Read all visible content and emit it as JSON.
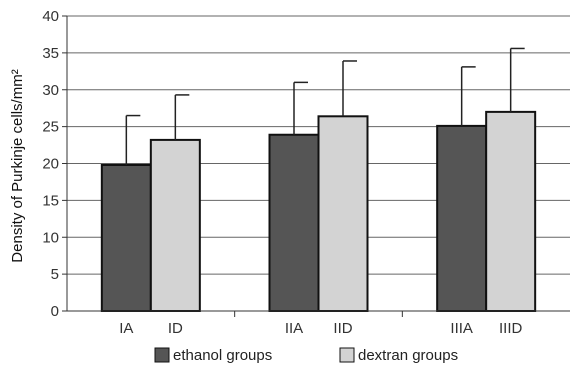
{
  "chart_data": {
    "type": "bar",
    "ylabel": "Density of Purkinje cells/mm²",
    "ylim": [
      0,
      40
    ],
    "yticks": [
      0,
      5,
      10,
      15,
      20,
      25,
      30,
      35,
      40
    ],
    "grid": true,
    "legend_position": "bottom",
    "groups": [
      {
        "labels": [
          "IA",
          "ID"
        ],
        "values": [
          19.8,
          23.2
        ],
        "errors": [
          6.7,
          6.1
        ]
      },
      {
        "labels": [
          "IIA",
          "IID"
        ],
        "values": [
          23.9,
          26.4
        ],
        "errors": [
          7.1,
          7.5
        ]
      },
      {
        "labels": [
          "IIIA",
          "IIID"
        ],
        "values": [
          25.1,
          27.0
        ],
        "errors": [
          8.0,
          8.6
        ]
      }
    ],
    "series": [
      {
        "name": "ethanol groups",
        "color": "#555555"
      },
      {
        "name": "dextran groups",
        "color": "#d3d3d3"
      }
    ]
  }
}
